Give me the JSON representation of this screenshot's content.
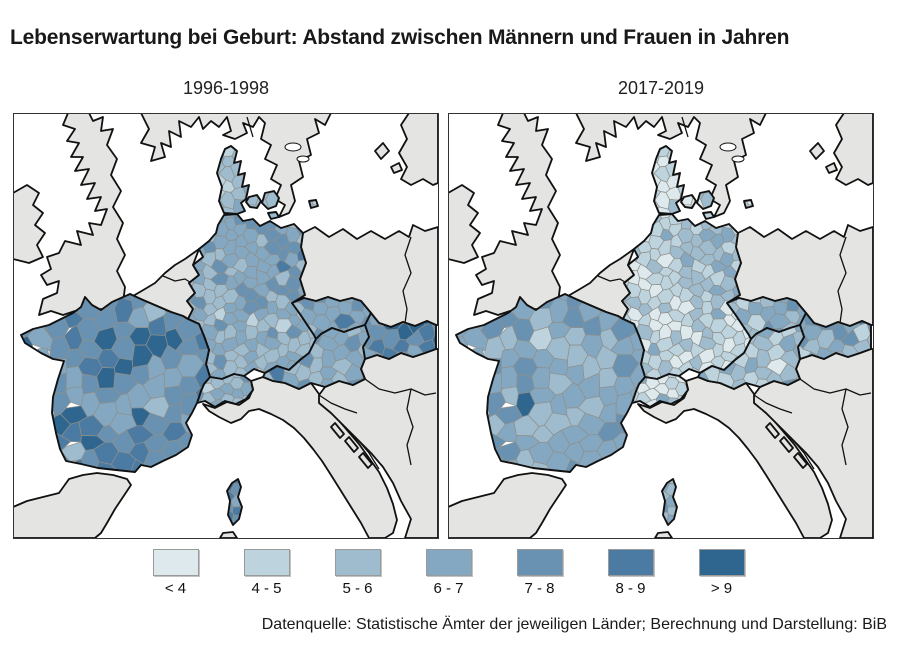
{
  "title": "Lebenserwartung bei Geburt: Abstand zwischen Männern und Frauen in Jahren",
  "source": "Datenquelle: Statistische Ämter der jeweiligen Länder; Berechnung und Darstellung: BiB",
  "panels": [
    {
      "label": "1996-1998"
    },
    {
      "label": "2017-2019"
    }
  ],
  "legend": {
    "items": [
      {
        "label": "< 4",
        "color": "#dde9ec"
      },
      {
        "label": "4 - 5",
        "color": "#bdd3de"
      },
      {
        "label": "5 - 6",
        "color": "#9fbccf"
      },
      {
        "label": "6 - 7",
        "color": "#84a8c2"
      },
      {
        "label": "7 - 8",
        "color": "#6992b2"
      },
      {
        "label": "8 - 9",
        "color": "#4b7aa3"
      },
      {
        "label": "> 9",
        "color": "#2e6690"
      }
    ],
    "unit": "Jahre"
  },
  "map": {
    "sea_color": "#ffffff",
    "land_color": "#e4e4e2",
    "coast_color": "#111111",
    "region_border_color": "#8f8f89",
    "frame_color": "#333333",
    "class_colors": [
      "#dde9ec",
      "#bdd3de",
      "#9fbccf",
      "#84a8c2",
      "#6992b2",
      "#4b7aa3",
      "#2e6690"
    ],
    "countries_shown": [
      "Dänemark",
      "Deutschland",
      "Frankreich",
      "Schweiz",
      "Österreich",
      "Tschechien",
      "Slowakei"
    ],
    "panel_fills": [
      {
        "period": "1996-1998",
        "weights": {
          "denmark": [
            0,
            0.3,
            0.5,
            0.2,
            0,
            0,
            0
          ],
          "bornholm": [
            0,
            0.5,
            0.5,
            0,
            0,
            0,
            0
          ],
          "germany_west": [
            0,
            0.06,
            0.4,
            0.38,
            0.16,
            0,
            0
          ],
          "germany_east": [
            0,
            0,
            0.14,
            0.34,
            0.42,
            0.1,
            0
          ],
          "czechia": [
            0,
            0,
            0.1,
            0.42,
            0.42,
            0.06,
            0
          ],
          "slovakia": [
            0,
            0,
            0.02,
            0.15,
            0.4,
            0.3,
            0.13
          ],
          "austria": [
            0,
            0.02,
            0.2,
            0.5,
            0.26,
            0.02,
            0
          ],
          "switzerland": [
            0,
            0.15,
            0.5,
            0.3,
            0.05,
            0,
            0
          ],
          "france": [
            0,
            0,
            0.02,
            0.16,
            0.44,
            0.3,
            0.08
          ],
          "corsica": [
            0,
            0,
            0,
            0.2,
            0.5,
            0.3,
            0
          ]
        }
      },
      {
        "period": "2017-2019",
        "weights": {
          "denmark": [
            0.5,
            0.4,
            0.1,
            0,
            0,
            0,
            0
          ],
          "bornholm": [
            0.6,
            0.4,
            0,
            0,
            0,
            0,
            0
          ],
          "germany_west": [
            0.3,
            0.45,
            0.2,
            0.05,
            0,
            0,
            0
          ],
          "germany_east": [
            0.02,
            0.25,
            0.45,
            0.25,
            0.03,
            0,
            0
          ],
          "czechia": [
            0,
            0.12,
            0.46,
            0.34,
            0.08,
            0,
            0
          ],
          "slovakia": [
            0,
            0.02,
            0.2,
            0.45,
            0.3,
            0.03,
            0
          ],
          "austria": [
            0.04,
            0.35,
            0.45,
            0.15,
            0.01,
            0,
            0
          ],
          "switzerland": [
            0.45,
            0.4,
            0.14,
            0.01,
            0,
            0,
            0
          ],
          "france": [
            0,
            0.02,
            0.3,
            0.44,
            0.2,
            0.03,
            0.01
          ],
          "corsica": [
            0,
            0,
            0.3,
            0.5,
            0.2,
            0,
            0
          ]
        }
      }
    ]
  }
}
